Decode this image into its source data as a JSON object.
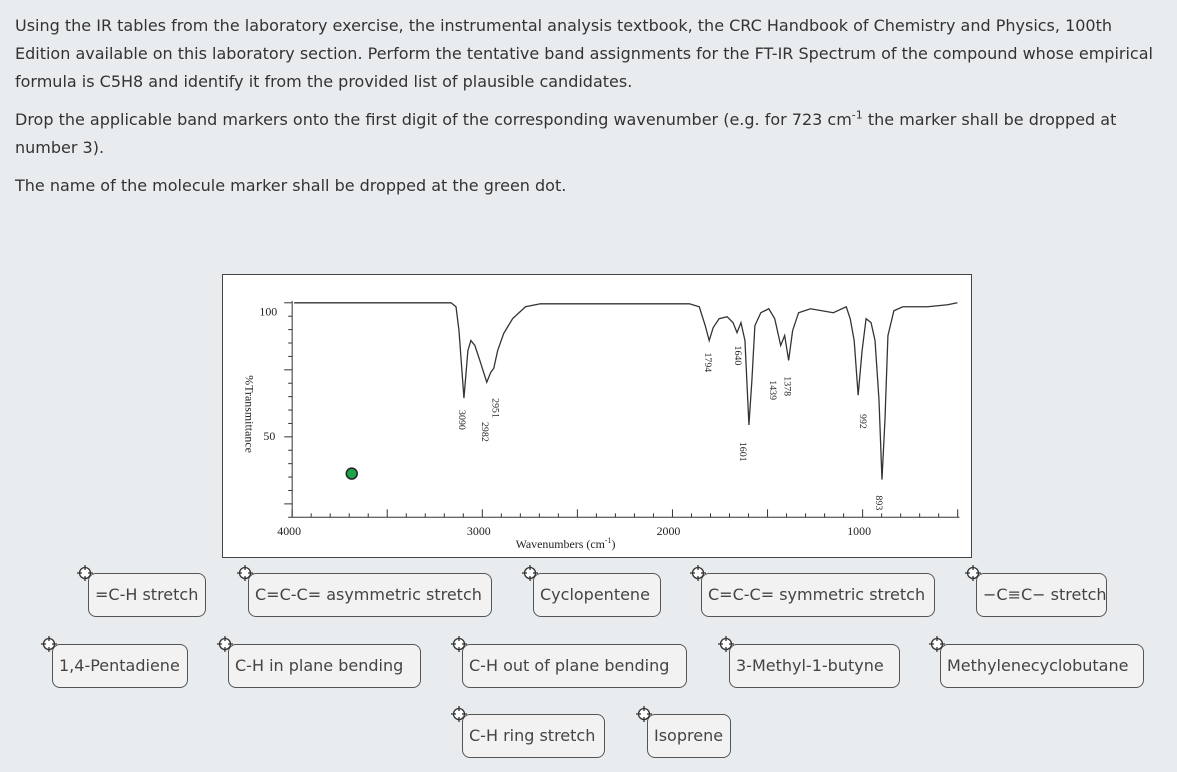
{
  "instructions": {
    "paragraphs": [
      [
        "Using the IR tables from the laboratory exercise, the instrumental analysis textbook, the CRC Handbook of Chemistry and Physics, 100th Edition available on this laboratory section.  Perform the tentative band assignments for the FT-IR Spectrum of the compound whose empirical formula is C5H8 and identify it from the provided list of plausible candidates."
      ],
      [
        "Drop the applicable band markers onto the first digit of the corresponding wavenumber (e.g.  for 723 cm",
        "-1",
        " the marker shall be dropped at number 3)."
      ],
      [
        "The name of the molecule marker shall be dropped at the green dot."
      ]
    ]
  },
  "spectrum": {
    "y_axis_label": "%Transmittance",
    "y_ticks": [
      "100",
      "50"
    ],
    "x_ticks": [
      "4000",
      "3000",
      "2000",
      "1000"
    ],
    "x_axis_label": [
      "Wavenumbers (cm",
      "-1",
      ")"
    ],
    "peaks": [
      "3090",
      "2982",
      "2951",
      "1794",
      "1640",
      "1601",
      "1439",
      "1378",
      "992",
      "893"
    ]
  },
  "markers": [
    "=C-H stretch",
    "C=C-C= asymmetric stretch",
    "Cyclopentene",
    "C=C-C= symmetric stretch",
    "−C≡C− stretch",
    "1,4-Pentadiene",
    "C-H in plane bending",
    "C-H out of plane bending",
    "3-Methyl-1-butyne",
    "Methylenecyclobutane",
    "C-H ring stretch",
    "Isoprene"
  ]
}
